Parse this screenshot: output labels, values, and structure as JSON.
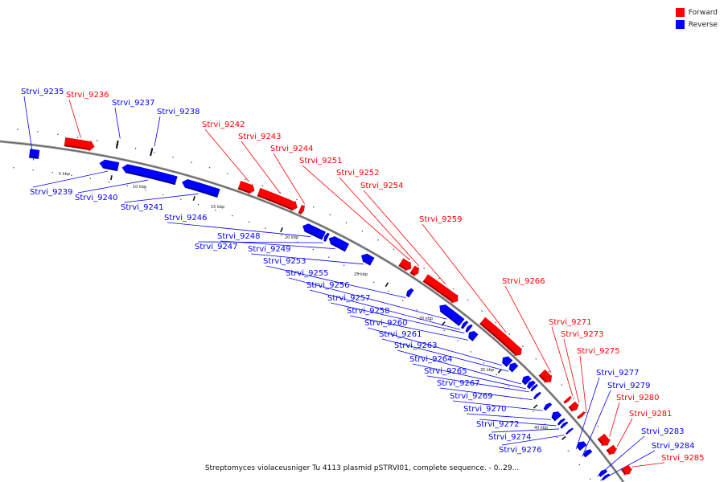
{
  "caption": "Streptomyces violaceusniger Tu 4113 plasmid pSTRVI01, complete sequence. - 0..29...",
  "colors": {
    "forward": "#ff0000",
    "reverse": "#0000ff",
    "backbone": "#808080"
  },
  "legend": [
    {
      "label": "Forward",
      "color": "#ff0000"
    },
    {
      "label": "Reverse",
      "color": "#0000ff"
    }
  ],
  "kbp_ticks": [
    "5 kbp",
    "10 kbp",
    "15 kbp",
    "20 kbp",
    "25 kbp",
    "30 kbp",
    "35 kbp",
    "40 kbp"
  ],
  "features": [
    {
      "name": "Strvi_9235",
      "strand": "reverse"
    },
    {
      "name": "Strvi_9236",
      "strand": "forward"
    },
    {
      "name": "Strvi_9237",
      "strand": "reverse"
    },
    {
      "name": "Strvi_9238",
      "strand": "reverse"
    },
    {
      "name": "Strvi_9239",
      "strand": "reverse"
    },
    {
      "name": "Strvi_9240",
      "strand": "reverse"
    },
    {
      "name": "Strvi_9241",
      "strand": "reverse"
    },
    {
      "name": "Strvi_9242",
      "strand": "forward"
    },
    {
      "name": "Strvi_9243",
      "strand": "forward"
    },
    {
      "name": "Strvi_9244",
      "strand": "forward"
    },
    {
      "name": "Strvi_9246",
      "strand": "reverse"
    },
    {
      "name": "Strvi_9247",
      "strand": "reverse"
    },
    {
      "name": "Strvi_9248",
      "strand": "reverse"
    },
    {
      "name": "Strvi_9249",
      "strand": "reverse"
    },
    {
      "name": "Strvi_9251",
      "strand": "forward"
    },
    {
      "name": "Strvi_9252",
      "strand": "forward"
    },
    {
      "name": "Strvi_9253",
      "strand": "reverse"
    },
    {
      "name": "Strvi_9254",
      "strand": "forward"
    },
    {
      "name": "Strvi_9255",
      "strand": "reverse"
    },
    {
      "name": "Strvi_9256",
      "strand": "reverse"
    },
    {
      "name": "Strvi_9257",
      "strand": "reverse"
    },
    {
      "name": "Strvi_9258",
      "strand": "reverse"
    },
    {
      "name": "Strvi_9259",
      "strand": "forward"
    },
    {
      "name": "Strvi_9260",
      "strand": "reverse"
    },
    {
      "name": "Strvi_9261",
      "strand": "reverse"
    },
    {
      "name": "Strvi_9263",
      "strand": "reverse"
    },
    {
      "name": "Strvi_9264",
      "strand": "reverse"
    },
    {
      "name": "Strvi_9265",
      "strand": "reverse"
    },
    {
      "name": "Strvi_9266",
      "strand": "forward"
    },
    {
      "name": "Strvi_9267",
      "strand": "reverse"
    },
    {
      "name": "Strvi_9269",
      "strand": "reverse"
    },
    {
      "name": "Strvi_9270",
      "strand": "reverse"
    },
    {
      "name": "Strvi_9271",
      "strand": "forward"
    },
    {
      "name": "Strvi_9272",
      "strand": "reverse"
    },
    {
      "name": "Strvi_9273",
      "strand": "forward"
    },
    {
      "name": "Strvi_9274",
      "strand": "reverse"
    },
    {
      "name": "Strvi_9275",
      "strand": "forward"
    },
    {
      "name": "Strvi_9276",
      "strand": "reverse"
    },
    {
      "name": "Strvi_9277",
      "strand": "reverse"
    },
    {
      "name": "Strvi_9279",
      "strand": "reverse"
    },
    {
      "name": "Strvi_9280",
      "strand": "forward"
    },
    {
      "name": "Strvi_9281",
      "strand": "forward"
    },
    {
      "name": "Strvi_9283",
      "strand": "reverse"
    },
    {
      "name": "Strvi_9284",
      "strand": "reverse"
    },
    {
      "name": "Strvi_9285",
      "strand": "forward"
    }
  ]
}
